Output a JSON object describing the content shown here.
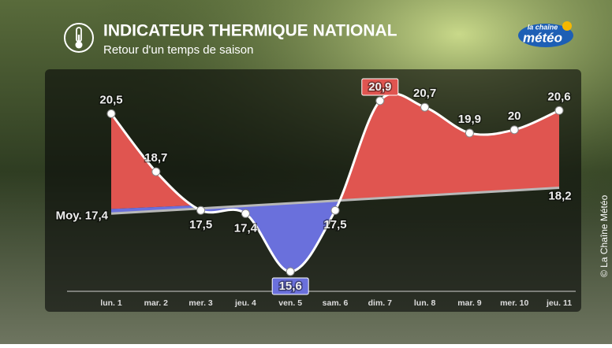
{
  "header": {
    "title": "INDICATEUR THERMIQUE NATIONAL",
    "subtitle": "Retour d'un temps de saison"
  },
  "logo": {
    "line1": "la chaîne",
    "line2": "météo"
  },
  "credit": "© La Chaîne Météo",
  "chart_data": {
    "type": "line",
    "categories": [
      "lun. 1",
      "mar. 2",
      "mer. 3",
      "jeu. 4",
      "ven. 5",
      "sam. 6",
      "dim. 7",
      "lun. 8",
      "mar. 9",
      "mer. 10",
      "jeu. 11"
    ],
    "series": [
      {
        "values": [
          20.5,
          18.7,
          17.5,
          17.4,
          15.6,
          17.5,
          20.9,
          20.7,
          19.9,
          20,
          20.6
        ],
        "value_labels": [
          "20,5",
          "18,7",
          "17,5",
          "17,4",
          "15,6",
          "17,5",
          "20,9",
          "20,7",
          "19,9",
          "20",
          "20,6"
        ],
        "color": "#ffffff",
        "above_color": "#e05550",
        "below_color": "#6a70dc"
      }
    ],
    "normal": {
      "values": [
        17.4,
        18.2
      ],
      "value_labels": [
        "Moy. 17,4",
        "18,2"
      ],
      "color": "#b8b8b8"
    }
  }
}
